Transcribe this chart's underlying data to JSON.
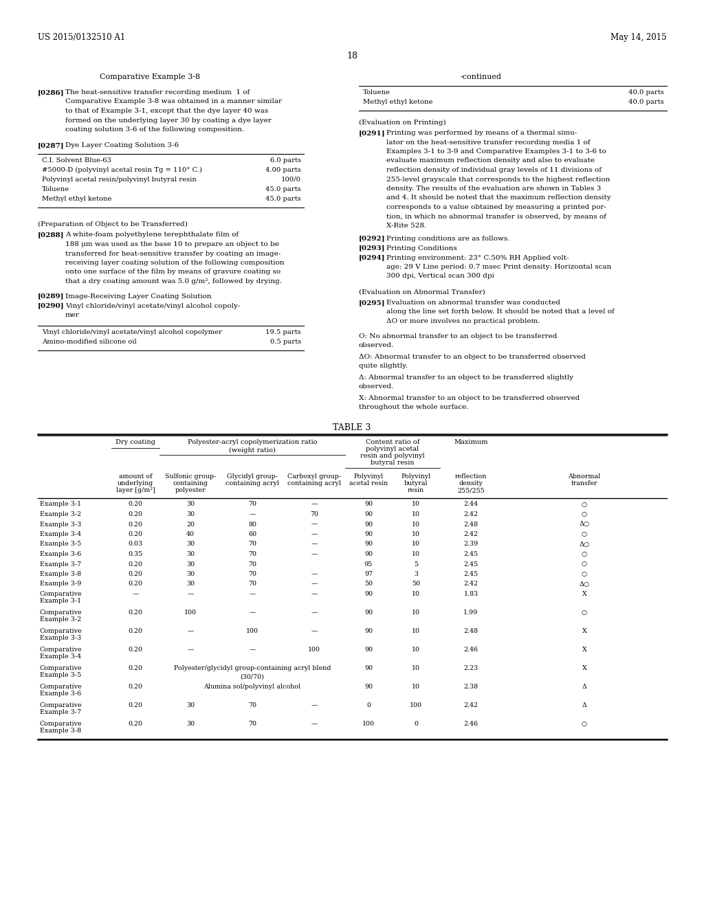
{
  "header_left": "US 2015/0132510 A1",
  "header_right": "May 14, 2015",
  "page_number": "18",
  "left_title": "Comparative Example 3-8",
  "right_title": "-continued",
  "left_table1_rows": [
    [
      "C.I. Solvent Blue-63",
      "6.0 parts"
    ],
    [
      "#5000-D (polyvinyl acetal resin Tg = 110° C.)",
      "4.00 parts"
    ],
    [
      "Polyvinyl acetal resin/polyvinyl butyral resin",
      "100/0"
    ],
    [
      "Toluene",
      "45.0 parts"
    ],
    [
      "Methyl ethyl ketone",
      "45.0 parts"
    ]
  ],
  "left_table2_rows": [
    [
      "Vinyl chloride/vinyl acetate/vinyl alcohol copolymer",
      "19.5 parts"
    ],
    [
      "Amino-modified silicone oil",
      "0.5 parts"
    ]
  ],
  "right_continued_table_rows": [
    [
      "Toluene",
      "40.0 parts"
    ],
    [
      "Methyl ethyl ketone",
      "40.0 parts"
    ]
  ],
  "table3_data": [
    [
      "Example 3-1",
      "0.20",
      "30",
      "70",
      "—",
      "90",
      "10",
      "2.44",
      "○"
    ],
    [
      "Example 3-2",
      "0.20",
      "30",
      "—",
      "70",
      "90",
      "10",
      "2.42",
      "○"
    ],
    [
      "Example 3-3",
      "0.20",
      "20",
      "80",
      "—",
      "90",
      "10",
      "2.48",
      "Δ○"
    ],
    [
      "Example 3-4",
      "0.20",
      "40",
      "60",
      "—",
      "90",
      "10",
      "2.42",
      "○"
    ],
    [
      "Example 3-5",
      "0.03",
      "30",
      "70",
      "—",
      "90",
      "10",
      "2.39",
      "Δ○"
    ],
    [
      "Example 3-6",
      "0.35",
      "30",
      "70",
      "—",
      "90",
      "10",
      "2.45",
      "○"
    ],
    [
      "Example 3-7",
      "0.20",
      "30",
      "70",
      "",
      "95",
      "5",
      "2.45",
      "○"
    ],
    [
      "Example 3-8",
      "0.20",
      "30",
      "70",
      "—",
      "97",
      "3",
      "2.45",
      "○"
    ],
    [
      "Example 3-9",
      "0.20",
      "30",
      "70",
      "—",
      "50",
      "50",
      "2.42",
      "Δ○"
    ],
    [
      "Comparative\nExample 3-1",
      "—",
      "—",
      "—",
      "—",
      "90",
      "10",
      "1.83",
      "X"
    ],
    [
      "Comparative\nExample 3-2",
      "0.20",
      "100",
      "—",
      "—",
      "90",
      "10",
      "1.99",
      "○"
    ],
    [
      "Comparative\nExample 3-3",
      "0.20",
      "—",
      "100",
      "—",
      "90",
      "10",
      "2.48",
      "X"
    ],
    [
      "Comparative\nExample 3-4",
      "0.20",
      "—",
      "—",
      "100",
      "90",
      "10",
      "2.46",
      "X"
    ],
    [
      "Comparative\nExample 3-5",
      "0.20",
      "Polyester/glycidyl group-containing acryl blend\n(30/70)",
      "",
      "",
      "90",
      "10",
      "2.23",
      "X"
    ],
    [
      "Comparative\nExample 3-6",
      "0.20",
      "Alumina sol/polyvinyl alcohol",
      "",
      "",
      "90",
      "10",
      "2.38",
      "Δ"
    ],
    [
      "Comparative\nExample 3-7",
      "0.20",
      "30",
      "70",
      "—",
      "0",
      "100",
      "2.42",
      "Δ"
    ],
    [
      "Comparative\nExample 3-8",
      "0.20",
      "30",
      "70",
      "—",
      "100",
      "0",
      "2.46",
      "○"
    ]
  ]
}
